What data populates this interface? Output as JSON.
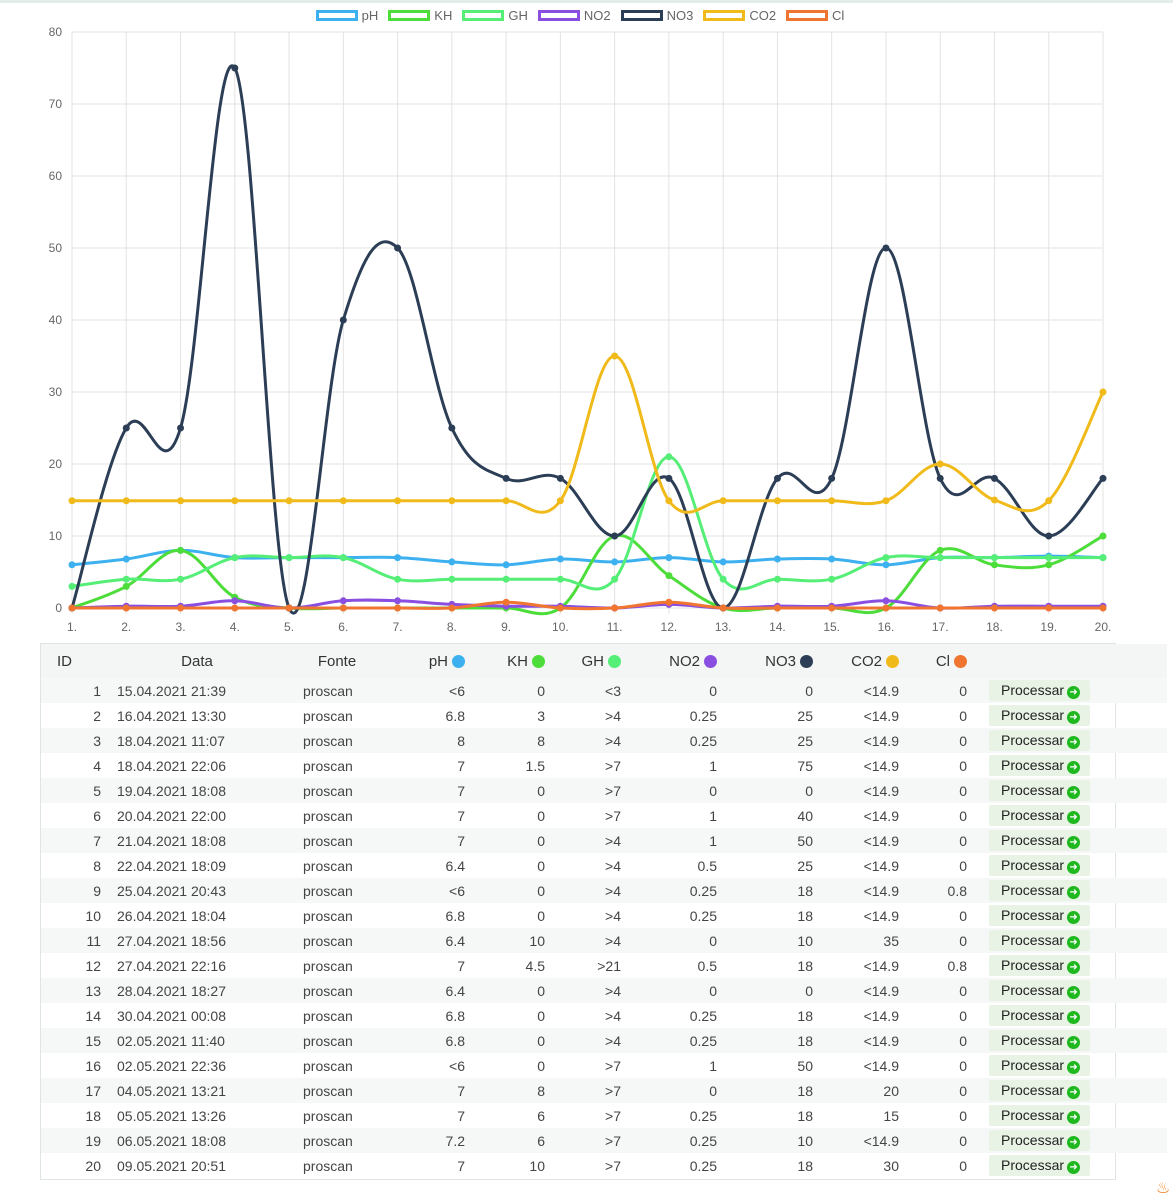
{
  "chart_data": {
    "type": "line",
    "x": [
      "1.",
      "2.",
      "3.",
      "4.",
      "5.",
      "6.",
      "7.",
      "8.",
      "9.",
      "10.",
      "11.",
      "12.",
      "13.",
      "14.",
      "15.",
      "16.",
      "17.",
      "18.",
      "19.",
      "20."
    ],
    "ylim": [
      0,
      80
    ],
    "yticks": [
      0,
      10,
      20,
      30,
      40,
      50,
      60,
      70,
      80
    ],
    "grid": true,
    "legend_position": "top",
    "series": [
      {
        "name": "pH",
        "color": "#3db0f0",
        "values": [
          6,
          6.8,
          8,
          7,
          7,
          7,
          7,
          6.4,
          6,
          6.8,
          6.4,
          7,
          6.4,
          6.8,
          6.8,
          6,
          7,
          7,
          7.2,
          7
        ]
      },
      {
        "name": "KH",
        "color": "#4ddd3a",
        "values": [
          0,
          3,
          8,
          1.5,
          0,
          0,
          0,
          0,
          0,
          0,
          10,
          4.5,
          0,
          0,
          0,
          0,
          8,
          6,
          6,
          10
        ]
      },
      {
        "name": "GH",
        "color": "#55ee77",
        "values": [
          3,
          4,
          4,
          7,
          7,
          7,
          4,
          4,
          4,
          4,
          4,
          21,
          4,
          4,
          4,
          7,
          7,
          7,
          7,
          7
        ]
      },
      {
        "name": "NO2",
        "color": "#8a4fe0",
        "values": [
          0,
          0.25,
          0.25,
          1,
          0,
          1,
          1,
          0.5,
          0.25,
          0.25,
          0,
          0.5,
          0,
          0.25,
          0.25,
          1,
          0,
          0.25,
          0.25,
          0.25
        ]
      },
      {
        "name": "NO3",
        "color": "#2c3e56",
        "values": [
          0,
          25,
          25,
          75,
          0,
          40,
          50,
          25,
          18,
          18,
          10,
          18,
          0,
          18,
          18,
          50,
          18,
          18,
          10,
          18
        ]
      },
      {
        "name": "CO2",
        "color": "#f0bb1a",
        "values": [
          14.9,
          14.9,
          14.9,
          14.9,
          14.9,
          14.9,
          14.9,
          14.9,
          14.9,
          14.9,
          35,
          14.9,
          14.9,
          14.9,
          14.9,
          14.9,
          20,
          15,
          14.9,
          30
        ]
      },
      {
        "name": "Cl",
        "color": "#f07530",
        "values": [
          0,
          0,
          0,
          0,
          0,
          0,
          0,
          0,
          0.8,
          0,
          0,
          0.8,
          0,
          0,
          0,
          0,
          0,
          0,
          0,
          0
        ]
      }
    ]
  },
  "table": {
    "headers": {
      "id": "ID",
      "data": "Data",
      "fonte": "Fonte",
      "ph": "pH",
      "kh": "KH",
      "gh": "GH",
      "no2": "NO2",
      "no3": "NO3",
      "co2": "CO2",
      "cl": "Cl"
    },
    "header_colors": {
      "ph": "#3db0f0",
      "kh": "#4ddd3a",
      "gh": "#55ee77",
      "no2": "#8a4fe0",
      "no3": "#2c3e56",
      "co2": "#f0bb1a",
      "cl": "#f07530"
    },
    "action_label": "Processar",
    "action_icon": "arrow-right-circle-icon",
    "rows": [
      {
        "id": "1",
        "data": "15.04.2021 21:39",
        "fonte": "proscan",
        "ph": "<6",
        "kh": "0",
        "gh": "<3",
        "no2": "0",
        "no3": "0",
        "co2": "<14.9",
        "cl": "0"
      },
      {
        "id": "2",
        "data": "16.04.2021 13:30",
        "fonte": "proscan",
        "ph": "6.8",
        "kh": "3",
        "gh": ">4",
        "no2": "0.25",
        "no3": "25",
        "co2": "<14.9",
        "cl": "0"
      },
      {
        "id": "3",
        "data": "18.04.2021 11:07",
        "fonte": "proscan",
        "ph": "8",
        "kh": "8",
        "gh": ">4",
        "no2": "0.25",
        "no3": "25",
        "co2": "<14.9",
        "cl": "0"
      },
      {
        "id": "4",
        "data": "18.04.2021 22:06",
        "fonte": "proscan",
        "ph": "7",
        "kh": "1.5",
        "gh": ">7",
        "no2": "1",
        "no3": "75",
        "co2": "<14.9",
        "cl": "0"
      },
      {
        "id": "5",
        "data": "19.04.2021 18:08",
        "fonte": "proscan",
        "ph": "7",
        "kh": "0",
        "gh": ">7",
        "no2": "0",
        "no3": "0",
        "co2": "<14.9",
        "cl": "0"
      },
      {
        "id": "6",
        "data": "20.04.2021 22:00",
        "fonte": "proscan",
        "ph": "7",
        "kh": "0",
        "gh": ">7",
        "no2": "1",
        "no3": "40",
        "co2": "<14.9",
        "cl": "0"
      },
      {
        "id": "7",
        "data": "21.04.2021 18:08",
        "fonte": "proscan",
        "ph": "7",
        "kh": "0",
        "gh": ">4",
        "no2": "1",
        "no3": "50",
        "co2": "<14.9",
        "cl": "0"
      },
      {
        "id": "8",
        "data": "22.04.2021 18:09",
        "fonte": "proscan",
        "ph": "6.4",
        "kh": "0",
        "gh": ">4",
        "no2": "0.5",
        "no3": "25",
        "co2": "<14.9",
        "cl": "0"
      },
      {
        "id": "9",
        "data": "25.04.2021 20:43",
        "fonte": "proscan",
        "ph": "<6",
        "kh": "0",
        "gh": ">4",
        "no2": "0.25",
        "no3": "18",
        "co2": "<14.9",
        "cl": "0.8"
      },
      {
        "id": "10",
        "data": "26.04.2021 18:04",
        "fonte": "proscan",
        "ph": "6.8",
        "kh": "0",
        "gh": ">4",
        "no2": "0.25",
        "no3": "18",
        "co2": "<14.9",
        "cl": "0"
      },
      {
        "id": "11",
        "data": "27.04.2021 18:56",
        "fonte": "proscan",
        "ph": "6.4",
        "kh": "10",
        "gh": ">4",
        "no2": "0",
        "no3": "10",
        "co2": "35",
        "cl": "0"
      },
      {
        "id": "12",
        "data": "27.04.2021 22:16",
        "fonte": "proscan",
        "ph": "7",
        "kh": "4.5",
        "gh": ">21",
        "no2": "0.5",
        "no3": "18",
        "co2": "<14.9",
        "cl": "0.8"
      },
      {
        "id": "13",
        "data": "28.04.2021 18:27",
        "fonte": "proscan",
        "ph": "6.4",
        "kh": "0",
        "gh": ">4",
        "no2": "0",
        "no3": "0",
        "co2": "<14.9",
        "cl": "0"
      },
      {
        "id": "14",
        "data": "30.04.2021 00:08",
        "fonte": "proscan",
        "ph": "6.8",
        "kh": "0",
        "gh": ">4",
        "no2": "0.25",
        "no3": "18",
        "co2": "<14.9",
        "cl": "0"
      },
      {
        "id": "15",
        "data": "02.05.2021 11:40",
        "fonte": "proscan",
        "ph": "6.8",
        "kh": "0",
        "gh": ">4",
        "no2": "0.25",
        "no3": "18",
        "co2": "<14.9",
        "cl": "0"
      },
      {
        "id": "16",
        "data": "02.05.2021 22:36",
        "fonte": "proscan",
        "ph": "<6",
        "kh": "0",
        "gh": ">7",
        "no2": "1",
        "no3": "50",
        "co2": "<14.9",
        "cl": "0"
      },
      {
        "id": "17",
        "data": "04.05.2021 13:21",
        "fonte": "proscan",
        "ph": "7",
        "kh": "8",
        "gh": ">7",
        "no2": "0",
        "no3": "18",
        "co2": "20",
        "cl": "0"
      },
      {
        "id": "18",
        "data": "05.05.2021 13:26",
        "fonte": "proscan",
        "ph": "7",
        "kh": "6",
        "gh": ">7",
        "no2": "0.25",
        "no3": "18",
        "co2": "15",
        "cl": "0"
      },
      {
        "id": "19",
        "data": "06.05.2021 18:08",
        "fonte": "proscan",
        "ph": "7.2",
        "kh": "6",
        "gh": ">7",
        "no2": "0.25",
        "no3": "10",
        "co2": "<14.9",
        "cl": "0"
      },
      {
        "id": "20",
        "data": "09.05.2021 20:51",
        "fonte": "proscan",
        "ph": "7",
        "kh": "10",
        "gh": ">7",
        "no2": "0.25",
        "no3": "18",
        "co2": "30",
        "cl": "0"
      }
    ]
  }
}
